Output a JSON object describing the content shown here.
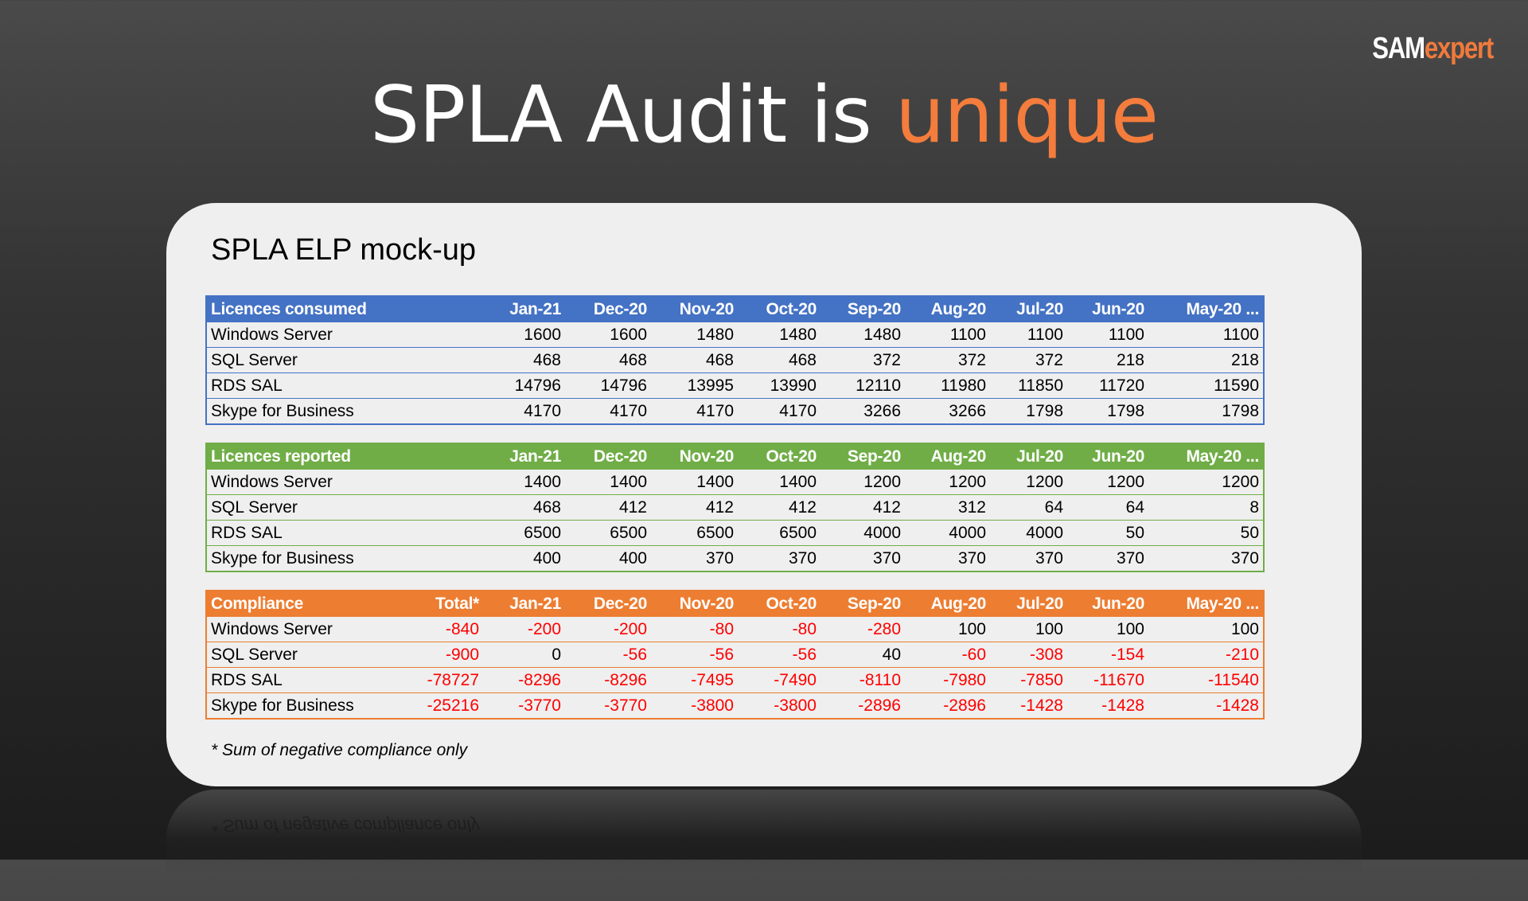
{
  "logo": {
    "part1": "SAM",
    "part2": "expert"
  },
  "slide_title": {
    "main": "SPLA Audit is ",
    "accent": "unique"
  },
  "card_title": "SPLA ELP mock-up",
  "footnote": "* Sum of negative compliance only",
  "tables": {
    "consumed": {
      "header": [
        "Licences consumed",
        "",
        "Jan-21",
        "Dec-20",
        "Nov-20",
        "Oct-20",
        "Sep-20",
        "Aug-20",
        "Jul-20",
        "Jun-20",
        "May-20 ..."
      ],
      "rows": [
        [
          "Windows Server",
          "",
          "1600",
          "1600",
          "1480",
          "1480",
          "1480",
          "1100",
          "1100",
          "1100",
          "1100"
        ],
        [
          "SQL Server",
          "",
          "468",
          "468",
          "468",
          "468",
          "372",
          "372",
          "372",
          "218",
          "218"
        ],
        [
          "RDS SAL",
          "",
          "14796",
          "14796",
          "13995",
          "13990",
          "12110",
          "11980",
          "11850",
          "11720",
          "11590"
        ],
        [
          "Skype for Business",
          "",
          "4170",
          "4170",
          "4170",
          "4170",
          "3266",
          "3266",
          "1798",
          "1798",
          "1798"
        ]
      ]
    },
    "reported": {
      "header": [
        "Licences reported",
        "",
        "Jan-21",
        "Dec-20",
        "Nov-20",
        "Oct-20",
        "Sep-20",
        "Aug-20",
        "Jul-20",
        "Jun-20",
        "May-20 ..."
      ],
      "rows": [
        [
          "Windows Server",
          "",
          "1400",
          "1400",
          "1400",
          "1400",
          "1200",
          "1200",
          "1200",
          "1200",
          "1200"
        ],
        [
          "SQL Server",
          "",
          "468",
          "412",
          "412",
          "412",
          "412",
          "312",
          "64",
          "64",
          "8"
        ],
        [
          "RDS SAL",
          "",
          "6500",
          "6500",
          "6500",
          "6500",
          "4000",
          "4000",
          "4000",
          "50",
          "50"
        ],
        [
          "Skype for Business",
          "",
          "400",
          "400",
          "370",
          "370",
          "370",
          "370",
          "370",
          "370",
          "370"
        ]
      ]
    },
    "compliance": {
      "header": [
        "Compliance",
        "Total*",
        "Jan-21",
        "Dec-20",
        "Nov-20",
        "Oct-20",
        "Sep-20",
        "Aug-20",
        "Jul-20",
        "Jun-20",
        "May-20 ..."
      ],
      "rows": [
        [
          "Windows Server",
          "-840",
          "-200",
          "-200",
          "-80",
          "-80",
          "-280",
          "100",
          "100",
          "100",
          "100"
        ],
        [
          "SQL Server",
          "-900",
          "0",
          "-56",
          "-56",
          "-56",
          "40",
          "-60",
          "-308",
          "-154",
          "-210"
        ],
        [
          "RDS SAL",
          "-78727",
          "-8296",
          "-8296",
          "-7495",
          "-7490",
          "-8110",
          "-7980",
          "-7850",
          "-11670",
          "-11540"
        ],
        [
          "Skype for Business",
          "-25216",
          "-3770",
          "-3770",
          "-3800",
          "-3800",
          "-2896",
          "-2896",
          "-1428",
          "-1428",
          "-1428"
        ]
      ]
    }
  },
  "colors": {
    "consumed_header": "#4472c4",
    "reported_header": "#70ad47",
    "compliance_header": "#ed7d31",
    "negative_value": "#ff0000",
    "title_accent": "#f47c3c"
  }
}
